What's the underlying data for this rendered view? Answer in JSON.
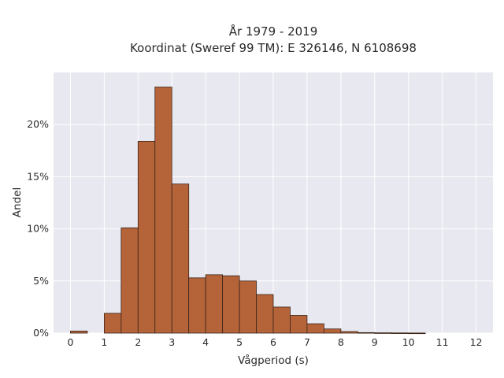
{
  "chart_data": {
    "type": "bar",
    "title_line1": "År 1979 - 2019",
    "title_line2": "Koordinat (Sweref 99 TM): E 326146, N 6108698",
    "xlabel": "Vågperiod (s)",
    "ylabel": "Andel",
    "bin_width": 0.5,
    "bins_start": [
      0,
      1,
      1.5,
      2,
      2.5,
      3,
      3.5,
      4,
      4.5,
      5,
      5.5,
      6,
      6.5,
      7,
      7.5,
      8,
      8.5,
      9,
      9.5,
      10
    ],
    "values": [
      0.2,
      1.9,
      10.1,
      18.4,
      23.6,
      14.3,
      5.3,
      5.6,
      5.5,
      5.0,
      3.7,
      2.5,
      1.7,
      0.9,
      0.4,
      0.15,
      0.05,
      0.03,
      0.02,
      0.01
    ],
    "xlim": [
      -0.5,
      12.5
    ],
    "ylim": [
      0,
      25
    ],
    "x_ticks": [
      "0",
      "1",
      "2",
      "3",
      "4",
      "5",
      "6",
      "7",
      "8",
      "9",
      "10",
      "11",
      "12"
    ],
    "y_ticks": [
      "0%",
      "5%",
      "10%",
      "15%",
      "20%"
    ],
    "grid": true,
    "bar_color": "#b5643a",
    "bar_edge_color": "#3b2418",
    "background_color": "#e8e8f0"
  }
}
